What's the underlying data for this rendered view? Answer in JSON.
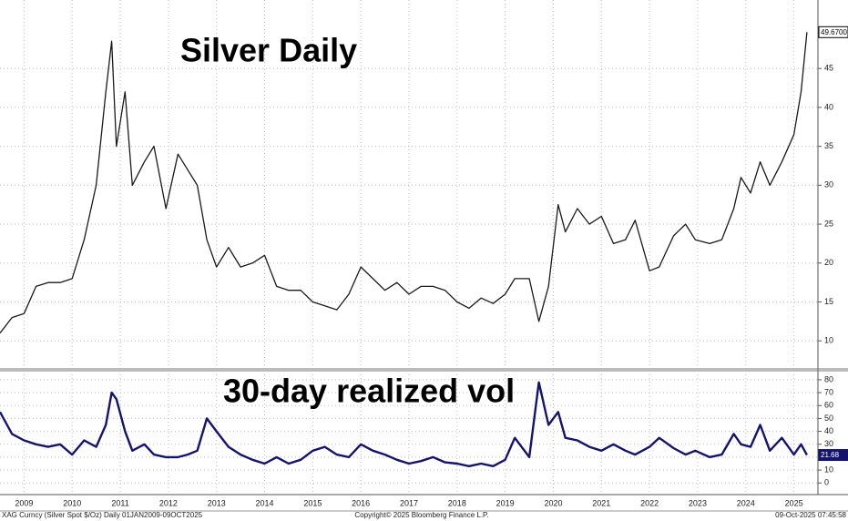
{
  "chart_data": [
    {
      "type": "line",
      "title": "Silver Daily",
      "x": [
        2009.0,
        2009.25,
        2009.5,
        2009.75,
        2010.0,
        2010.25,
        2010.5,
        2010.75,
        2011.0,
        2011.2,
        2011.32,
        2011.42,
        2011.6,
        2011.75,
        2012.0,
        2012.2,
        2012.45,
        2012.7,
        2012.9,
        2013.1,
        2013.3,
        2013.5,
        2013.75,
        2014.0,
        2014.25,
        2014.5,
        2014.75,
        2015.0,
        2015.25,
        2015.5,
        2015.75,
        2016.0,
        2016.25,
        2016.5,
        2016.75,
        2017.0,
        2017.25,
        2017.5,
        2017.75,
        2018.0,
        2018.25,
        2018.5,
        2018.75,
        2019.0,
        2019.25,
        2019.5,
        2019.7,
        2020.0,
        2020.2,
        2020.4,
        2020.6,
        2020.75,
        2021.0,
        2021.25,
        2021.5,
        2021.75,
        2022.0,
        2022.2,
        2022.5,
        2022.7,
        2023.0,
        2023.25,
        2023.45,
        2023.75,
        2024.0,
        2024.25,
        2024.4,
        2024.6,
        2024.8,
        2025.0,
        2025.25,
        2025.5,
        2025.65,
        2025.77
      ],
      "series": [
        {
          "name": "XAG Curncy",
          "color": "#1a1a1a",
          "values": [
            11,
            13,
            13.5,
            17,
            17.5,
            17.5,
            18,
            23,
            30,
            42,
            48.5,
            35,
            42,
            30,
            33,
            35,
            27,
            34,
            32,
            30,
            23,
            19.5,
            22,
            19.5,
            20,
            21,
            17,
            16.5,
            16.5,
            15,
            14.5,
            14,
            16,
            19.5,
            18,
            16.5,
            17.5,
            16,
            17,
            17,
            16.5,
            15,
            14.2,
            15.5,
            14.8,
            16,
            18,
            18,
            12.5,
            17,
            27.5,
            24,
            27,
            25,
            26,
            22.5,
            23,
            25.5,
            19,
            19.5,
            23.5,
            25,
            23,
            22.5,
            23,
            27,
            31,
            29,
            33,
            30,
            33,
            36.5,
            42,
            49.67
          ],
          "value_labels": [
            null,
            null,
            null,
            null,
            null,
            null,
            null,
            null,
            null,
            null,
            null,
            null,
            null,
            null,
            null,
            null,
            null,
            null,
            null,
            null,
            null,
            null,
            null,
            null,
            null,
            null,
            null,
            null,
            null,
            null,
            null,
            null,
            null,
            null,
            null,
            null,
            null,
            null,
            null,
            null,
            null,
            null,
            null,
            null,
            null,
            null,
            null,
            null,
            null,
            null,
            null,
            null,
            null,
            null,
            null,
            null,
            null,
            null,
            null,
            null,
            null,
            null,
            null,
            null,
            null,
            null,
            null,
            null,
            null,
            null,
            null,
            null,
            null,
            "49.6700"
          ]
        }
      ],
      "xlim": [
        2009.0,
        2026.0
      ],
      "ylim": [
        6.4,
        53.8
      ],
      "yticks": [
        10,
        15,
        20,
        25,
        30,
        35,
        40,
        45
      ],
      "grid": true
    },
    {
      "type": "line",
      "title": "30-day realized vol",
      "x": [
        2009.0,
        2009.25,
        2009.5,
        2009.75,
        2010.0,
        2010.25,
        2010.5,
        2010.75,
        2011.0,
        2011.2,
        2011.32,
        2011.42,
        2011.6,
        2011.75,
        2012.0,
        2012.2,
        2012.45,
        2012.7,
        2012.9,
        2013.1,
        2013.3,
        2013.5,
        2013.75,
        2014.0,
        2014.25,
        2014.5,
        2014.75,
        2015.0,
        2015.25,
        2015.5,
        2015.75,
        2016.0,
        2016.25,
        2016.5,
        2016.75,
        2017.0,
        2017.25,
        2017.5,
        2017.75,
        2018.0,
        2018.25,
        2018.5,
        2018.75,
        2019.0,
        2019.25,
        2019.5,
        2019.7,
        2020.0,
        2020.2,
        2020.4,
        2020.6,
        2020.75,
        2021.0,
        2021.25,
        2021.5,
        2021.75,
        2022.0,
        2022.2,
        2022.5,
        2022.7,
        2023.0,
        2023.25,
        2023.45,
        2023.75,
        2024.0,
        2024.25,
        2024.4,
        2024.6,
        2024.8,
        2025.0,
        2025.25,
        2025.5,
        2025.65,
        2025.77
      ],
      "series": [
        {
          "name": "30-day realized vol",
          "color": "#14146e",
          "values": [
            55,
            38,
            33,
            30,
            28,
            30,
            22,
            33,
            28,
            45,
            70,
            65,
            40,
            25,
            30,
            22,
            20,
            20,
            22,
            25,
            50,
            40,
            28,
            22,
            18,
            15,
            20,
            15,
            18,
            25,
            28,
            22,
            20,
            30,
            25,
            22,
            18,
            15,
            17,
            20,
            16,
            15,
            13,
            15,
            13,
            18,
            35,
            20,
            78,
            45,
            55,
            35,
            33,
            28,
            25,
            30,
            25,
            22,
            28,
            35,
            27,
            22,
            25,
            20,
            22,
            38,
            30,
            28,
            45,
            25,
            35,
            22,
            30,
            21.68
          ]
        }
      ],
      "xlim": [
        2009.0,
        2026.0
      ],
      "xticks": [
        {
          "value": 2009.5,
          "label": "2009"
        },
        {
          "value": 2010.5,
          "label": "2010"
        },
        {
          "value": 2011.5,
          "label": "2011"
        },
        {
          "value": 2012.5,
          "label": "2012"
        },
        {
          "value": 2013.5,
          "label": "2013"
        },
        {
          "value": 2014.5,
          "label": "2014"
        },
        {
          "value": 2015.5,
          "label": "2015"
        },
        {
          "value": 2016.5,
          "label": "2016"
        },
        {
          "value": 2017.5,
          "label": "2017"
        },
        {
          "value": 2018.5,
          "label": "2018"
        },
        {
          "value": 2019.5,
          "label": "2019"
        },
        {
          "value": 2020.5,
          "label": "2020"
        },
        {
          "value": 2021.5,
          "label": "2021"
        },
        {
          "value": 2022.5,
          "label": "2022"
        },
        {
          "value": 2023.5,
          "label": "2023"
        },
        {
          "value": 2024.5,
          "label": "2024"
        },
        {
          "value": 2025.5,
          "label": "2025"
        }
      ],
      "ylim": [
        -9,
        87
      ],
      "yticks": [
        0,
        10,
        20,
        30,
        40,
        50,
        60,
        70,
        80
      ],
      "grid": true
    }
  ],
  "footer": {
    "left": "XAG Curncy (Silver Spot  $/Oz) Daily 01JAN2009-09OCT2025",
    "center": "Copyright© 2025 Bloomberg Finance L.P.",
    "right": "09-Oct-2025 07:45:58"
  }
}
